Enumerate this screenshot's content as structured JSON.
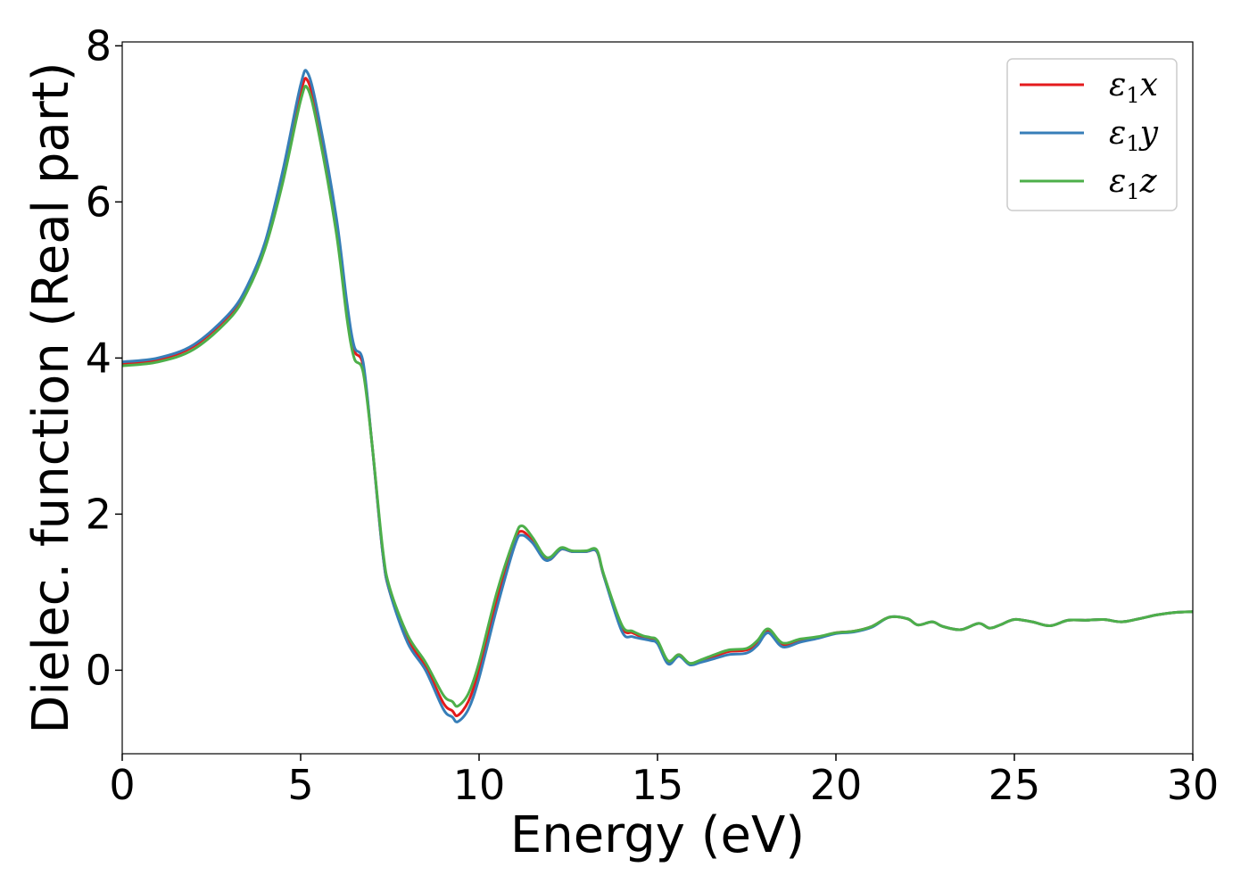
{
  "chart_data": {
    "type": "line",
    "xlabel": "Energy (eV)",
    "ylabel": "Dielec. function (Real part)",
    "xlim": [
      0,
      30
    ],
    "ylim": [
      -1.07,
      8.05
    ],
    "xticks": [
      0,
      5,
      10,
      15,
      20,
      25,
      30
    ],
    "yticks": [
      0,
      2,
      4,
      6,
      8
    ],
    "grid": false,
    "legend_position": "top-right",
    "x": [
      0,
      1,
      2,
      3,
      3.5,
      4,
      4.5,
      5,
      5.2,
      5.5,
      6,
      6.3,
      6.5,
      6.75,
      7,
      7.3,
      7.5,
      8,
      8.5,
      9,
      9.25,
      9.4,
      9.7,
      10,
      10.5,
      11,
      11.2,
      11.5,
      11.8,
      12,
      12.3,
      12.6,
      13,
      13.3,
      13.5,
      14,
      14.3,
      14.6,
      14.8,
      15,
      15.3,
      15.6,
      15.9,
      16.2,
      16.6,
      17,
      17.5,
      17.8,
      18.1,
      18.5,
      19,
      19.5,
      20,
      20.5,
      21,
      21.5,
      22,
      22.3,
      22.7,
      23,
      23.5,
      24,
      24.3,
      24.6,
      25,
      25.5,
      26,
      26.5,
      27,
      27.5,
      28,
      28.5,
      29,
      29.5,
      30
    ],
    "series": [
      {
        "name": "x",
        "color": "#e41a1c",
        "values": [
          3.93,
          3.98,
          4.15,
          4.55,
          4.9,
          5.45,
          6.35,
          7.4,
          7.55,
          7.0,
          5.7,
          4.6,
          4.1,
          3.9,
          2.9,
          1.5,
          1.0,
          0.4,
          0.05,
          -0.42,
          -0.52,
          -0.58,
          -0.4,
          0.0,
          0.9,
          1.65,
          1.78,
          1.65,
          1.45,
          1.42,
          1.55,
          1.52,
          1.52,
          1.52,
          1.2,
          0.55,
          0.48,
          0.42,
          0.4,
          0.36,
          0.1,
          0.2,
          0.08,
          0.12,
          0.18,
          0.24,
          0.26,
          0.35,
          0.5,
          0.33,
          0.38,
          0.42,
          0.48,
          0.5,
          0.56,
          0.68,
          0.66,
          0.58,
          0.62,
          0.56,
          0.52,
          0.6,
          0.54,
          0.58,
          0.65,
          0.62,
          0.57,
          0.64,
          0.64,
          0.65,
          0.62,
          0.66,
          0.71,
          0.74,
          0.75
        ]
      },
      {
        "name": "y",
        "color": "#377eb8",
        "values": [
          3.95,
          4.0,
          4.17,
          4.57,
          4.92,
          5.48,
          6.4,
          7.5,
          7.65,
          7.1,
          5.8,
          4.7,
          4.15,
          3.95,
          2.9,
          1.5,
          1.0,
          0.35,
          0.0,
          -0.5,
          -0.6,
          -0.66,
          -0.5,
          -0.1,
          0.8,
          1.6,
          1.73,
          1.63,
          1.43,
          1.42,
          1.55,
          1.52,
          1.52,
          1.52,
          1.2,
          0.5,
          0.43,
          0.4,
          0.38,
          0.34,
          0.08,
          0.18,
          0.07,
          0.1,
          0.15,
          0.2,
          0.22,
          0.32,
          0.48,
          0.3,
          0.36,
          0.41,
          0.47,
          0.49,
          0.55,
          0.68,
          0.66,
          0.58,
          0.62,
          0.56,
          0.52,
          0.6,
          0.54,
          0.58,
          0.65,
          0.62,
          0.57,
          0.64,
          0.64,
          0.65,
          0.62,
          0.66,
          0.71,
          0.74,
          0.75
        ]
      },
      {
        "name": "z",
        "color": "#4daf4a",
        "values": [
          3.9,
          3.95,
          4.11,
          4.5,
          4.85,
          5.4,
          6.25,
          7.3,
          7.45,
          6.9,
          5.6,
          4.5,
          4.0,
          3.82,
          2.9,
          1.55,
          1.05,
          0.45,
          0.1,
          -0.32,
          -0.4,
          -0.46,
          -0.3,
          0.1,
          1.0,
          1.7,
          1.85,
          1.7,
          1.48,
          1.45,
          1.57,
          1.53,
          1.53,
          1.54,
          1.22,
          0.58,
          0.5,
          0.44,
          0.42,
          0.38,
          0.12,
          0.2,
          0.09,
          0.13,
          0.2,
          0.26,
          0.28,
          0.38,
          0.53,
          0.35,
          0.4,
          0.43,
          0.48,
          0.5,
          0.56,
          0.68,
          0.66,
          0.58,
          0.62,
          0.56,
          0.52,
          0.6,
          0.54,
          0.58,
          0.65,
          0.62,
          0.57,
          0.64,
          0.64,
          0.65,
          0.62,
          0.66,
          0.71,
          0.74,
          0.75
        ]
      }
    ]
  },
  "legend": {
    "items": [
      {
        "symbol": "ε",
        "subscript": "1",
        "suffix": "x"
      },
      {
        "symbol": "ε",
        "subscript": "1",
        "suffix": "y"
      },
      {
        "symbol": "ε",
        "subscript": "1",
        "suffix": "z"
      }
    ]
  }
}
